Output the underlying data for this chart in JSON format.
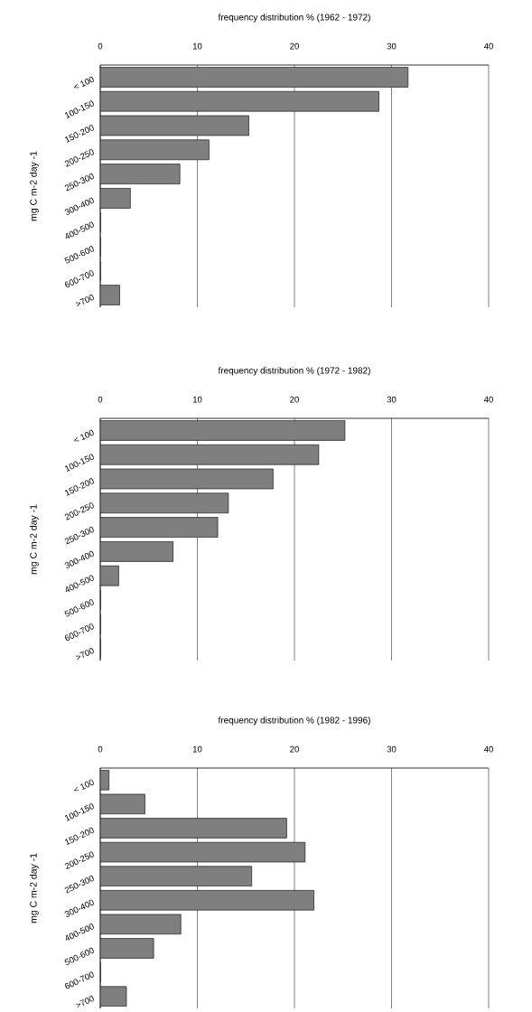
{
  "chart_data": [
    {
      "type": "bar",
      "orientation": "horizontal",
      "title": "frequency distribution % (1962 - 1972)",
      "ylabel": "mg C m-2 day -1",
      "categories": [
        "< 100",
        "100-150",
        "150-200",
        "200-250",
        "250-300",
        "300-400",
        "400-500",
        "500-600",
        "600-700",
        ">700"
      ],
      "values": [
        31.7,
        28.7,
        15.3,
        11.2,
        8.2,
        3.1,
        0,
        0,
        0,
        2.0
      ],
      "color": "#7f7f7f",
      "xlim": [
        0,
        40
      ],
      "xticks": [
        0,
        10,
        20,
        30,
        40
      ],
      "grid": "x"
    },
    {
      "type": "bar",
      "orientation": "horizontal",
      "title": "frequency distribution % (1972 - 1982)",
      "ylabel": "mg C m-2 day -1",
      "categories": [
        "< 100",
        "100-150",
        "150-200",
        "200-250",
        "250-300",
        "300-400",
        "400-500",
        "500-600",
        "600-700",
        ">700"
      ],
      "values": [
        25.2,
        22.5,
        17.8,
        13.2,
        12.1,
        7.5,
        1.9,
        0,
        0,
        0
      ],
      "color": "#7f7f7f",
      "xlim": [
        0,
        40
      ],
      "xticks": [
        0,
        10,
        20,
        30,
        40
      ],
      "grid": "x"
    },
    {
      "type": "bar",
      "orientation": "horizontal",
      "title": "frequency distribution % (1982 - 1996)",
      "ylabel": "mg C m-2 day -1",
      "categories": [
        "< 100",
        "100-150",
        "150-200",
        "200-250",
        "250-300",
        "300-400",
        "400-500",
        "500-600",
        "600-700",
        ">700"
      ],
      "values": [
        0.9,
        4.6,
        19.2,
        21.1,
        15.6,
        22.0,
        8.3,
        5.5,
        0,
        2.7
      ],
      "color": "#7f7f7f",
      "xlim": [
        0,
        40
      ],
      "xticks": [
        0,
        10,
        20,
        30,
        40
      ],
      "grid": "x"
    }
  ]
}
